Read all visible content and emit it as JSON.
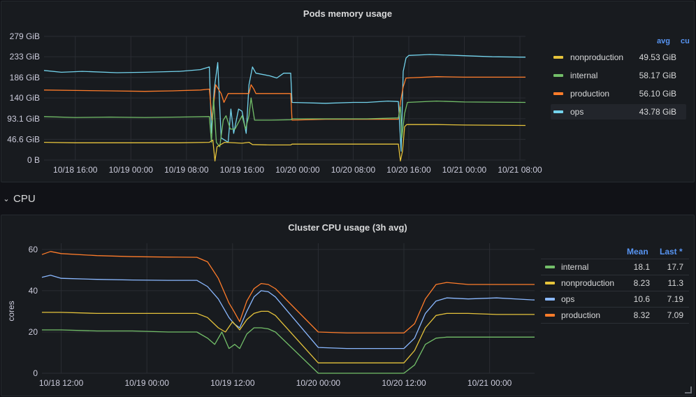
{
  "colors": {
    "background": "#111217",
    "panel": "#181b1f",
    "grid": "#2a2d33",
    "yellow": "#e5c33b",
    "green": "#73bf69",
    "orange": "#ff7c2a",
    "cyan": "#73d3ec",
    "blue": "#8ab8ff",
    "accent": "#5794f2"
  },
  "row": {
    "chevron": "⌄",
    "title": "CPU"
  },
  "memory_panel": {
    "legend": {
      "header_avg": "avg",
      "header_cut": "cu",
      "items": [
        {
          "name": "nonproduction",
          "avg": "49.53 GiB",
          "color": "#e5c33b"
        },
        {
          "name": "internal",
          "avg": "58.17 GiB",
          "color": "#73bf69"
        },
        {
          "name": "production",
          "avg": "56.10 GiB",
          "color": "#ff7c2a"
        },
        {
          "name": "ops",
          "avg": "43.78 GiB",
          "color": "#73d3ec"
        }
      ]
    }
  },
  "cpu_panel": {
    "legend": {
      "header_mean": "Mean",
      "header_last": "Last *",
      "items": [
        {
          "name": "internal",
          "mean": "18.1",
          "last": "17.7",
          "color": "#73bf69"
        },
        {
          "name": "nonproduction",
          "mean": "8.23",
          "last": "11.3",
          "color": "#e5c33b"
        },
        {
          "name": "ops",
          "mean": "10.6",
          "last": "7.19",
          "color": "#8ab8ff"
        },
        {
          "name": "production",
          "mean": "8.32",
          "last": "7.09",
          "color": "#ff7c2a"
        }
      ]
    }
  },
  "chart_data": [
    {
      "type": "line",
      "title": "Pods memory usage",
      "ylabel": "",
      "ylim": [
        0,
        279
      ],
      "y_ticks": [
        "0 B",
        "46.6 GiB",
        "93.1 GiB",
        "140 GiB",
        "186 GiB",
        "233 GiB",
        "279 GiB"
      ],
      "x_ticks": [
        "10/18 16:00",
        "10/19 00:00",
        "10/19 08:00",
        "10/19 16:00",
        "10/20 00:00",
        "10/20 08:00",
        "10/20 16:00",
        "10/21 00:00",
        "10/21 08:00"
      ],
      "x_unit": "hours since 10/18 00:00 (tick 10/18 16:00 = 16)",
      "x_range": [
        11.5,
        80.8
      ],
      "grid": true,
      "legend": "right",
      "series": [
        {
          "name": "ops",
          "color": "#73d3ec",
          "points": [
            [
              11.5,
              202
            ],
            [
              14,
              198
            ],
            [
              17,
              200
            ],
            [
              22,
              197
            ],
            [
              26,
              198
            ],
            [
              31,
              200
            ],
            [
              34,
              204
            ],
            [
              35.3,
              210
            ],
            [
              35.6,
              60
            ],
            [
              36,
              160
            ],
            [
              36.5,
              220
            ],
            [
              37,
              50
            ],
            [
              38,
              40
            ],
            [
              38.4,
              115
            ],
            [
              38.8,
              60
            ],
            [
              39.5,
              115
            ],
            [
              40,
              110
            ],
            [
              40.6,
              60
            ],
            [
              41,
              170
            ],
            [
              41.5,
              210
            ],
            [
              42,
              196
            ],
            [
              44,
              190
            ],
            [
              45,
              185
            ],
            [
              46,
              196
            ],
            [
              47,
              196
            ],
            [
              47.2,
              130
            ],
            [
              52,
              128
            ],
            [
              56,
              130
            ],
            [
              58,
              130
            ],
            [
              61,
              133
            ],
            [
              62.5,
              132
            ],
            [
              62.9,
              20
            ],
            [
              63.2,
              200
            ],
            [
              63.6,
              230
            ],
            [
              64,
              236
            ],
            [
              67,
              238
            ],
            [
              71,
              236
            ],
            [
              76,
              233
            ],
            [
              80.8,
              232
            ]
          ]
        },
        {
          "name": "production",
          "color": "#ff7c2a",
          "points": [
            [
              11.5,
              158
            ],
            [
              16,
              157
            ],
            [
              21,
              156
            ],
            [
              26,
              155
            ],
            [
              30,
              156
            ],
            [
              34,
              158
            ],
            [
              35.3,
              160
            ],
            [
              35.7,
              90
            ],
            [
              36.2,
              170
            ],
            [
              37,
              150
            ],
            [
              37.4,
              130
            ],
            [
              38,
              150
            ],
            [
              41,
              150
            ],
            [
              41.3,
              170
            ],
            [
              41.7,
              160
            ],
            [
              42,
              150
            ],
            [
              47,
              150
            ],
            [
              47.2,
              90
            ],
            [
              52,
              92
            ],
            [
              58,
              92
            ],
            [
              62.5,
              92
            ],
            [
              62.8,
              130
            ],
            [
              63.2,
              165
            ],
            [
              63.6,
              185
            ],
            [
              68,
              188
            ],
            [
              72,
              187
            ],
            [
              80.8,
              187
            ]
          ]
        },
        {
          "name": "internal",
          "color": "#73bf69",
          "points": [
            [
              11.5,
              98
            ],
            [
              16,
              96
            ],
            [
              21,
              97
            ],
            [
              26,
              96
            ],
            [
              31,
              97
            ],
            [
              35.3,
              98
            ],
            [
              35.6,
              40
            ],
            [
              35.9,
              140
            ],
            [
              36.3,
              40
            ],
            [
              36.8,
              30
            ],
            [
              37.3,
              90
            ],
            [
              37.7,
              100
            ],
            [
              38.3,
              70
            ],
            [
              39,
              70
            ],
            [
              40,
              100
            ],
            [
              40.5,
              70
            ],
            [
              41,
              100
            ],
            [
              41.3,
              140
            ],
            [
              41.8,
              90
            ],
            [
              44,
              90
            ],
            [
              47,
              91
            ],
            [
              47.2,
              93
            ],
            [
              52,
              93
            ],
            [
              58,
              93
            ],
            [
              62.5,
              95
            ],
            [
              62.8,
              120
            ],
            [
              63,
              50
            ],
            [
              63.4,
              105
            ],
            [
              63.8,
              130
            ],
            [
              68,
              133
            ],
            [
              72,
              131
            ],
            [
              80.8,
              130
            ]
          ]
        },
        {
          "name": "nonproduction",
          "color": "#e5c33b",
          "points": [
            [
              11.5,
              40
            ],
            [
              16,
              39
            ],
            [
              21,
              39
            ],
            [
              26,
              39
            ],
            [
              31,
              39
            ],
            [
              35.3,
              40
            ],
            [
              35.8,
              45
            ],
            [
              36.1,
              -2
            ],
            [
              36.4,
              30
            ],
            [
              37.5,
              40
            ],
            [
              40,
              38
            ],
            [
              41,
              40
            ],
            [
              41.5,
              35
            ],
            [
              44,
              34
            ],
            [
              47,
              34
            ],
            [
              47.2,
              36
            ],
            [
              52,
              36
            ],
            [
              58,
              36
            ],
            [
              62.5,
              36
            ],
            [
              62.8,
              -2
            ],
            [
              63.1,
              20
            ],
            [
              63.4,
              75
            ],
            [
              63.7,
              80
            ],
            [
              68,
              80
            ],
            [
              72,
              79
            ],
            [
              80.8,
              78
            ]
          ]
        }
      ]
    },
    {
      "type": "line",
      "title": "Cluster CPU usage (3h avg)",
      "ylabel": "cores",
      "ylim": [
        0,
        63
      ],
      "y_ticks": [
        "0",
        "20",
        "40",
        "60"
      ],
      "x_ticks": [
        "10/18 12:00",
        "10/19 00:00",
        "10/19 12:00",
        "10/20 00:00",
        "10/20 12:00",
        "10/21 00:00"
      ],
      "x_unit": "hours since 10/18 00:00 (tick 10/18 12:00 = 12)",
      "x_range": [
        9.3,
        78.3
      ],
      "grid": true,
      "legend": "right",
      "series": [
        {
          "name": "production",
          "color": "#ff7c2a",
          "points": [
            [
              9.3,
              57.5
            ],
            [
              10.5,
              59
            ],
            [
              12,
              58
            ],
            [
              17,
              57
            ],
            [
              22,
              56.5
            ],
            [
              27,
              56.3
            ],
            [
              31,
              56.2
            ],
            [
              32.5,
              54
            ],
            [
              34,
              46
            ],
            [
              35.5,
              34
            ],
            [
              36.2,
              30
            ],
            [
              37,
              25
            ],
            [
              38,
              35
            ],
            [
              39,
              41
            ],
            [
              40,
              43.5
            ],
            [
              41,
              43
            ],
            [
              42,
              41
            ],
            [
              48,
              20
            ],
            [
              52,
              19.5
            ],
            [
              56,
              19.5
            ],
            [
              60,
              19.5
            ],
            [
              61.5,
              24
            ],
            [
              63,
              36
            ],
            [
              64.5,
              43
            ],
            [
              66,
              44
            ],
            [
              69,
              43
            ],
            [
              73,
              43
            ],
            [
              78.3,
              43
            ]
          ]
        },
        {
          "name": "ops",
          "color": "#8ab8ff",
          "points": [
            [
              9.3,
              46.5
            ],
            [
              10.5,
              47.5
            ],
            [
              12,
              46
            ],
            [
              17,
              45.5
            ],
            [
              22,
              45.2
            ],
            [
              27,
              45
            ],
            [
              31,
              45
            ],
            [
              32.5,
              42
            ],
            [
              34,
              36
            ],
            [
              35.5,
              27
            ],
            [
              36.2,
              24
            ],
            [
              37,
              22
            ],
            [
              38,
              30
            ],
            [
              39,
              37
            ],
            [
              40,
              40
            ],
            [
              41,
              39.5
            ],
            [
              42,
              37
            ],
            [
              48,
              12.5
            ],
            [
              52,
              12
            ],
            [
              56,
              12
            ],
            [
              60,
              12
            ],
            [
              61.5,
              17
            ],
            [
              63,
              29
            ],
            [
              64.5,
              35
            ],
            [
              66,
              36.5
            ],
            [
              69,
              36
            ],
            [
              73,
              36.5
            ],
            [
              78.3,
              35.5
            ]
          ]
        },
        {
          "name": "nonproduction",
          "color": "#e5c33b",
          "points": [
            [
              9.3,
              29.5
            ],
            [
              12,
              29.5
            ],
            [
              17,
              29
            ],
            [
              22,
              29
            ],
            [
              27,
              29
            ],
            [
              31,
              29
            ],
            [
              32.5,
              27
            ],
            [
              34,
              22
            ],
            [
              35,
              20
            ],
            [
              36,
              25
            ],
            [
              37,
              21
            ],
            [
              38,
              26
            ],
            [
              39,
              29
            ],
            [
              40,
              30
            ],
            [
              41,
              30
            ],
            [
              42,
              28
            ],
            [
              48,
              5
            ],
            [
              52,
              5
            ],
            [
              56,
              5
            ],
            [
              60,
              5
            ],
            [
              61.5,
              11
            ],
            [
              63,
              22
            ],
            [
              64.5,
              28
            ],
            [
              66,
              29
            ],
            [
              69,
              29
            ],
            [
              73,
              28.5
            ],
            [
              78.3,
              28.5
            ]
          ]
        },
        {
          "name": "internal",
          "color": "#73bf69",
          "points": [
            [
              9.3,
              21
            ],
            [
              12,
              21
            ],
            [
              17,
              20.5
            ],
            [
              22,
              20.5
            ],
            [
              27,
              20
            ],
            [
              31,
              20
            ],
            [
              32.5,
              17
            ],
            [
              33.5,
              14
            ],
            [
              34.5,
              20
            ],
            [
              35.5,
              12
            ],
            [
              36.3,
              14
            ],
            [
              37,
              12
            ],
            [
              38,
              19
            ],
            [
              39,
              22
            ],
            [
              40,
              22
            ],
            [
              41,
              21.5
            ],
            [
              42,
              20
            ],
            [
              48,
              0
            ],
            [
              52,
              0
            ],
            [
              56,
              0
            ],
            [
              60,
              0
            ],
            [
              61.5,
              4
            ],
            [
              63,
              14
            ],
            [
              64.5,
              17
            ],
            [
              66,
              17.5
            ],
            [
              69,
              17.5
            ],
            [
              73,
              17.5
            ],
            [
              78.3,
              17.5
            ]
          ]
        }
      ]
    }
  ]
}
